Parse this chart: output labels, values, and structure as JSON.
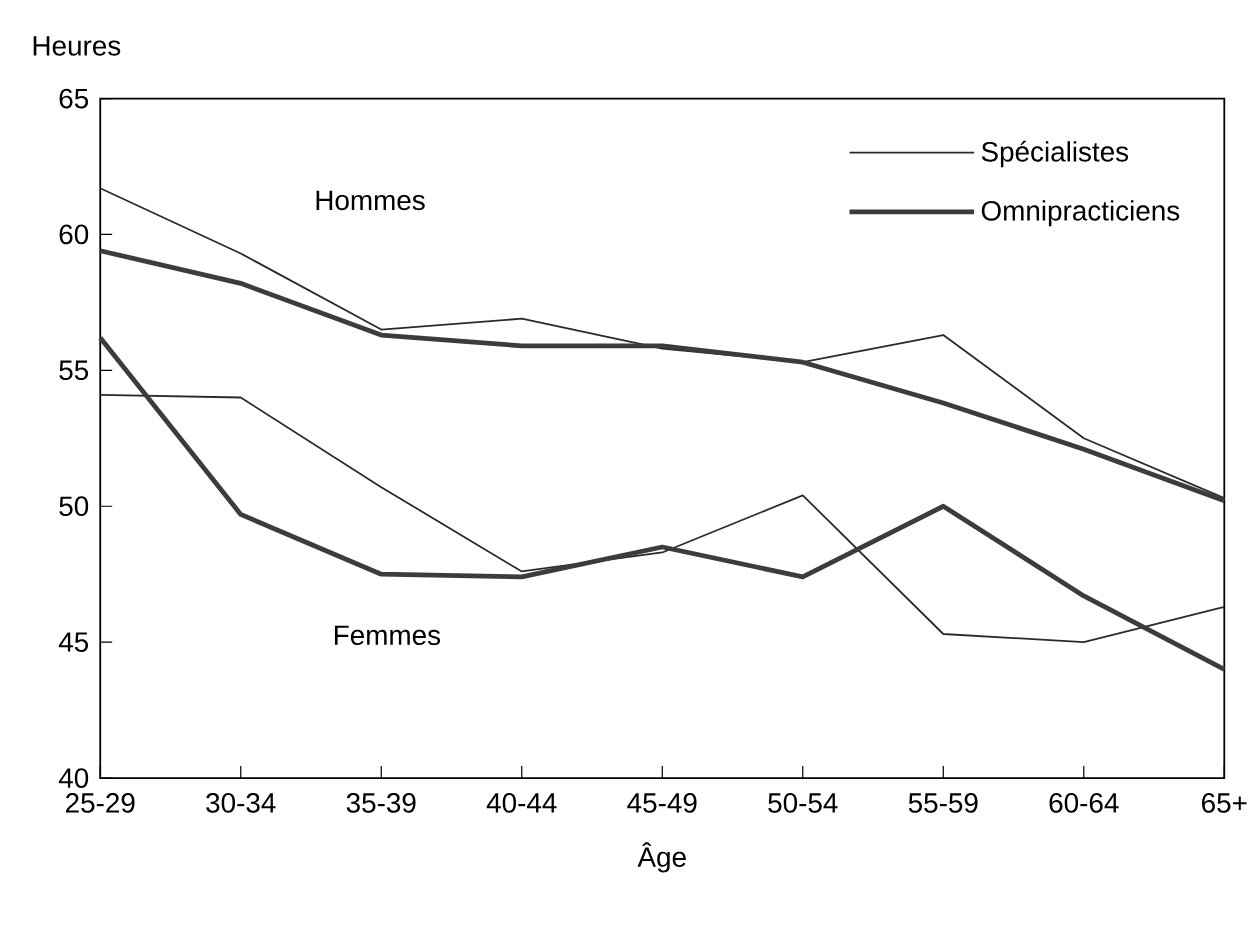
{
  "chart_data": {
    "type": "line",
    "xlabel": "Âge",
    "ylabel": "Heures",
    "categories": [
      "25-29",
      "30-34",
      "35-39",
      "40-44",
      "45-49",
      "50-54",
      "55-59",
      "60-64",
      "65+"
    ],
    "series": [
      {
        "name": "Spécialistes",
        "color": "#2a2a2a",
        "values": [
          61.7,
          59.3,
          56.5,
          56.9,
          55.8,
          55.3,
          56.3,
          52.5,
          50.3
        ]
      },
      {
        "name": "Omnipracticiens",
        "color": "#3c3c3c",
        "values": [
          59.4,
          58.2,
          56.3,
          55.9,
          55.9,
          55.3,
          53.8,
          52.1,
          50.2
        ]
      },
      {
        "color": "#2a2a2a",
        "values": [
          54.1,
          54.0,
          50.7,
          47.6,
          48.3,
          50.4,
          45.3,
          45.0,
          46.3
        ]
      },
      {
        "color": "#3c3c3c",
        "values": [
          56.2,
          49.7,
          47.5,
          47.4,
          48.5,
          47.4,
          50.0,
          46.7,
          44.0
        ]
      }
    ],
    "ylim": [
      40,
      65
    ],
    "yticks": [
      40,
      45,
      50,
      55,
      60,
      65
    ],
    "annotations": [
      "Hommes",
      "Femmes"
    ],
    "legend": "top right",
    "grid": false,
    "marker": "none",
    "line_style": "solid"
  }
}
